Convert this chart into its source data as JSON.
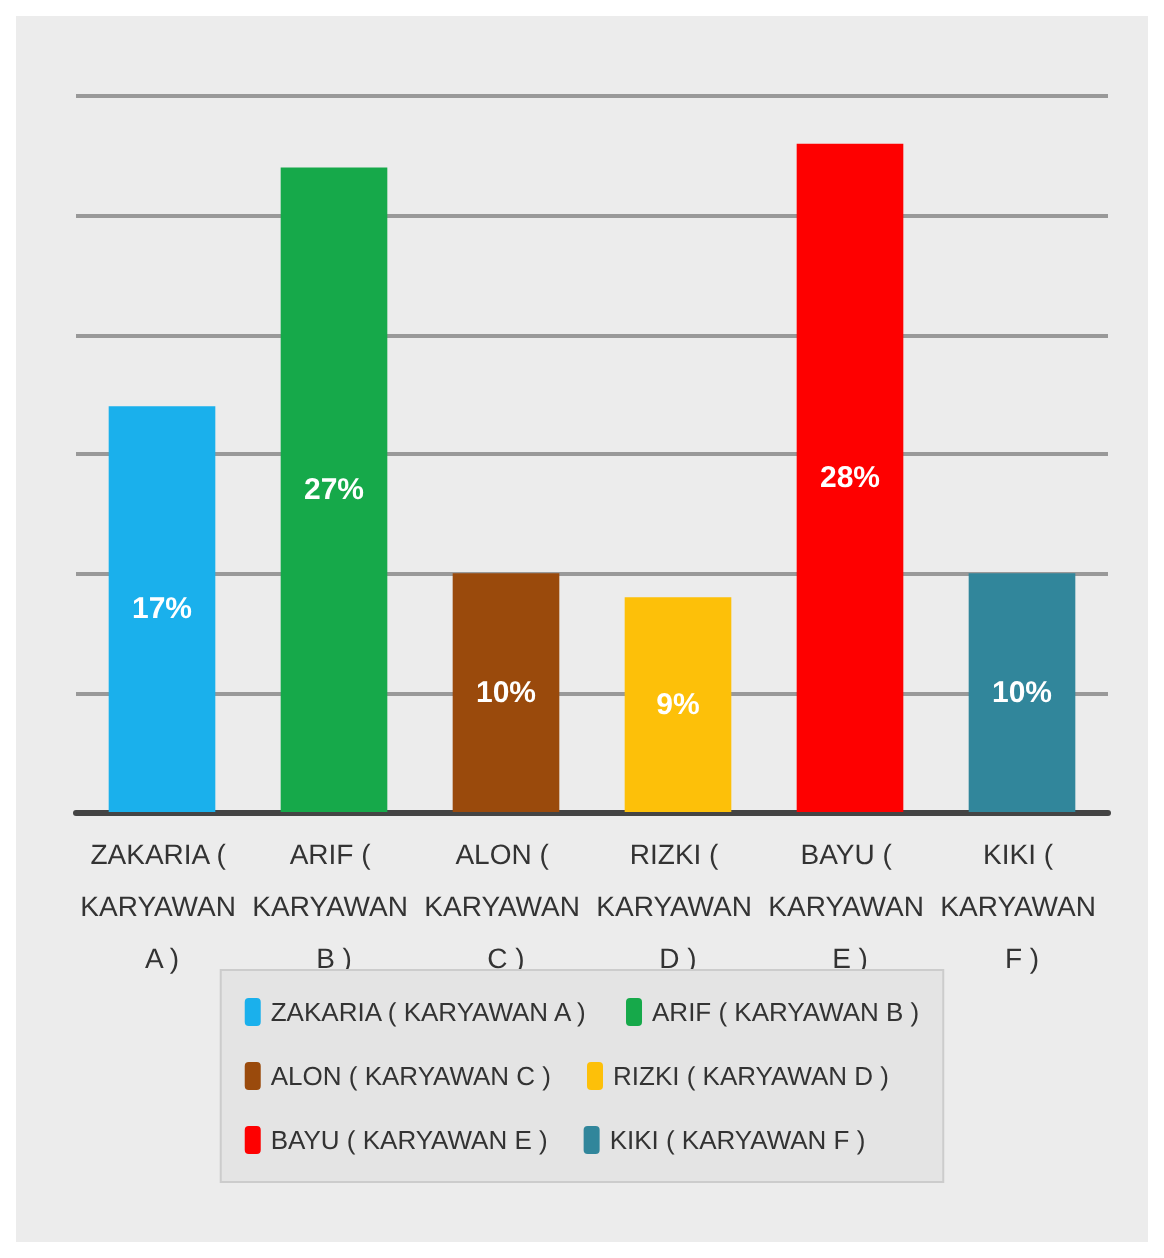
{
  "chart_data": {
    "type": "bar",
    "categories": [
      "ZAKARIA ( KARYAWAN A )",
      "ARIF ( KARYAWAN B )",
      "ALON ( KARYAWAN C )",
      "RIZKI ( KARYAWAN D )",
      "BAYU ( KARYAWAN E )",
      "KIKI ( KARYAWAN F )"
    ],
    "series": [
      {
        "name": "ZAKARIA ( KARYAWAN A )",
        "color": "#1ab0ec",
        "values": [
          17,
          null,
          null,
          null,
          null,
          null
        ],
        "value_labels": [
          "17%",
          null,
          null,
          null,
          null,
          null
        ]
      },
      {
        "name": "ARIF ( KARYAWAN B )",
        "color": "#16a94a",
        "values": [
          null,
          27,
          null,
          null,
          null,
          null
        ],
        "value_labels": [
          null,
          "27%",
          null,
          null,
          null,
          null
        ]
      },
      {
        "name": "ALON ( KARYAWAN C )",
        "color": "#9a4a0c",
        "values": [
          null,
          null,
          10,
          null,
          null,
          null
        ],
        "value_labels": [
          null,
          null,
          "10%",
          null,
          null,
          null
        ]
      },
      {
        "name": "RIZKI ( KARYAWAN D )",
        "color": "#fdc009",
        "values": [
          null,
          null,
          null,
          9,
          null,
          null
        ],
        "value_labels": [
          null,
          null,
          null,
          "9%",
          null,
          null
        ]
      },
      {
        "name": "BAYU ( KARYAWAN E )",
        "color": "#fe0000",
        "values": [
          null,
          null,
          null,
          null,
          28,
          null
        ],
        "value_labels": [
          null,
          null,
          null,
          null,
          "28%",
          null
        ]
      },
      {
        "name": "KIKI ( KARYAWAN F )",
        "color": "#31869b",
        "values": [
          null,
          null,
          null,
          null,
          null,
          10
        ],
        "value_labels": [
          null,
          null,
          null,
          null,
          null,
          "10%"
        ]
      }
    ],
    "ylim": [
      0,
      30
    ],
    "yticks": [
      {
        "value": 0,
        "label": null
      },
      {
        "value": 5,
        "label": null
      },
      {
        "value": 10,
        "label": null
      },
      {
        "value": 15,
        "label": null
      },
      {
        "value": 20,
        "label": null
      },
      {
        "value": 25,
        "label": null
      },
      {
        "value": 30,
        "label": null
      }
    ],
    "tick_labels": "x",
    "grid": "y",
    "legend": "bottom"
  }
}
